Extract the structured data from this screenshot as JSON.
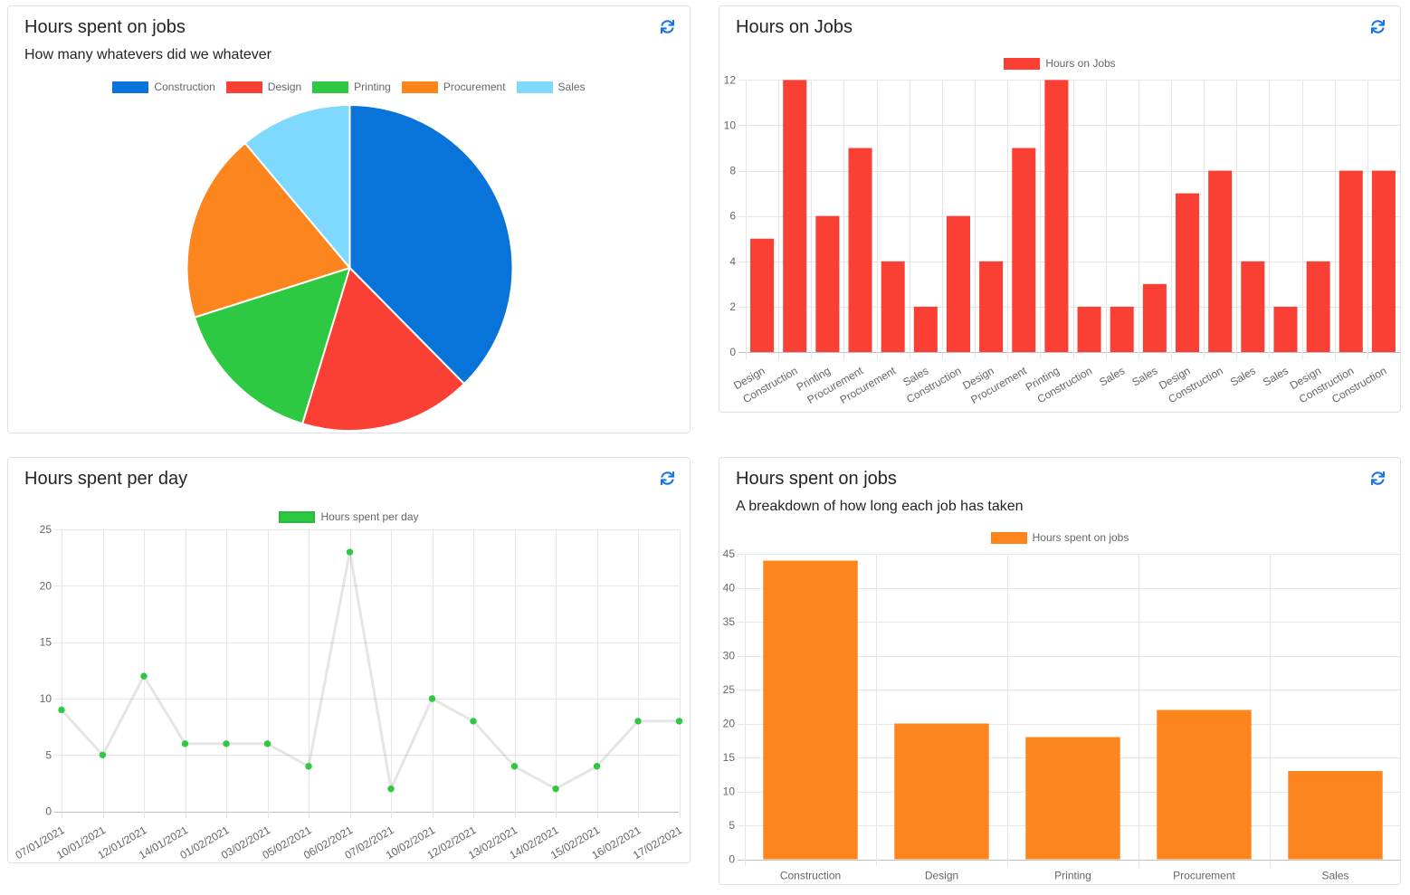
{
  "page": {
    "background": "#ffffff"
  },
  "theme": {
    "panel_border": "#dee0e3",
    "title_color": "#212529",
    "tick_color": "#666666",
    "grid_color": "#e6e6e6",
    "zero_line_color": "#bfbfbf",
    "refresh_icon_color": "#1673e8"
  },
  "panels": [
    {
      "title": "Hours spent on jobs",
      "subtitle": "How many whatevers did we whatever"
    },
    {
      "title": "Hours on Jobs",
      "subtitle": ""
    },
    {
      "title": "Hours spent per day",
      "subtitle": ""
    },
    {
      "title": "Hours spent on jobs",
      "subtitle": "A breakdown of how long each job has taken"
    }
  ],
  "chart_data": [
    {
      "type": "pie",
      "title": "Hours spent on jobs",
      "legend_position": "top",
      "categories": [
        "Construction",
        "Design",
        "Printing",
        "Procurement",
        "Sales"
      ],
      "values": [
        44,
        20,
        18,
        22,
        13
      ],
      "colors": [
        "#0873d8",
        "#fa3f35",
        "#2ec943",
        "#fc861d",
        "#7fd9ff"
      ]
    },
    {
      "type": "bar",
      "title": "Hours on Jobs",
      "legend_position": "top",
      "series": [
        {
          "name": "Hours on Jobs",
          "color": "#fa3f35",
          "values": [
            5,
            12,
            6,
            9,
            4,
            2,
            6,
            4,
            9,
            12,
            2,
            2,
            3,
            7,
            8,
            4,
            2,
            4,
            8,
            8
          ]
        }
      ],
      "categories": [
        "Design",
        "Construction",
        "Printing",
        "Procurement",
        "Procurement",
        "Sales",
        "Construction",
        "Design",
        "Procurement",
        "Printing",
        "Construction",
        "Sales",
        "Sales",
        "Design",
        "Construction",
        "Sales",
        "Sales",
        "Design",
        "Construction",
        "Construction"
      ],
      "xlabel": "",
      "ylabel": "",
      "ylim": [
        0,
        12
      ],
      "ytick_step": 2,
      "x_label_rotation": 30,
      "grid": true
    },
    {
      "type": "line",
      "title": "Hours spent per day",
      "legend_position": "top",
      "series": [
        {
          "name": "Hours spent per day",
          "point_color": "#2ec943",
          "line_color": "rgba(0,0,0,0.10)",
          "values": [
            9,
            5,
            12,
            6,
            6,
            6,
            4,
            23,
            2,
            10,
            8,
            4,
            2,
            4,
            8,
            8
          ]
        }
      ],
      "categories": [
        "07/01/2021",
        "10/01/2021",
        "12/01/2021",
        "14/01/2021",
        "01/02/2021",
        "03/02/2021",
        "05/02/2021",
        "06/02/2021",
        "07/02/2021",
        "10/02/2021",
        "12/02/2021",
        "13/02/2021",
        "14/02/2021",
        "15/02/2021",
        "16/02/2021",
        "17/02/2021"
      ],
      "xlabel": "",
      "ylabel": "",
      "ylim": [
        0,
        25
      ],
      "ytick_step": 5,
      "x_label_rotation": 30,
      "grid": true
    },
    {
      "type": "bar",
      "title": "Hours spent on jobs",
      "legend_position": "top",
      "series": [
        {
          "name": "Hours spent on jobs",
          "color": "#fc861d",
          "values": [
            44,
            20,
            18,
            22,
            13
          ]
        }
      ],
      "categories": [
        "Construction",
        "Design",
        "Printing",
        "Procurement",
        "Sales"
      ],
      "xlabel": "",
      "ylabel": "",
      "ylim": [
        0,
        45
      ],
      "ytick_step": 5,
      "x_label_rotation": 0,
      "grid": true
    }
  ]
}
